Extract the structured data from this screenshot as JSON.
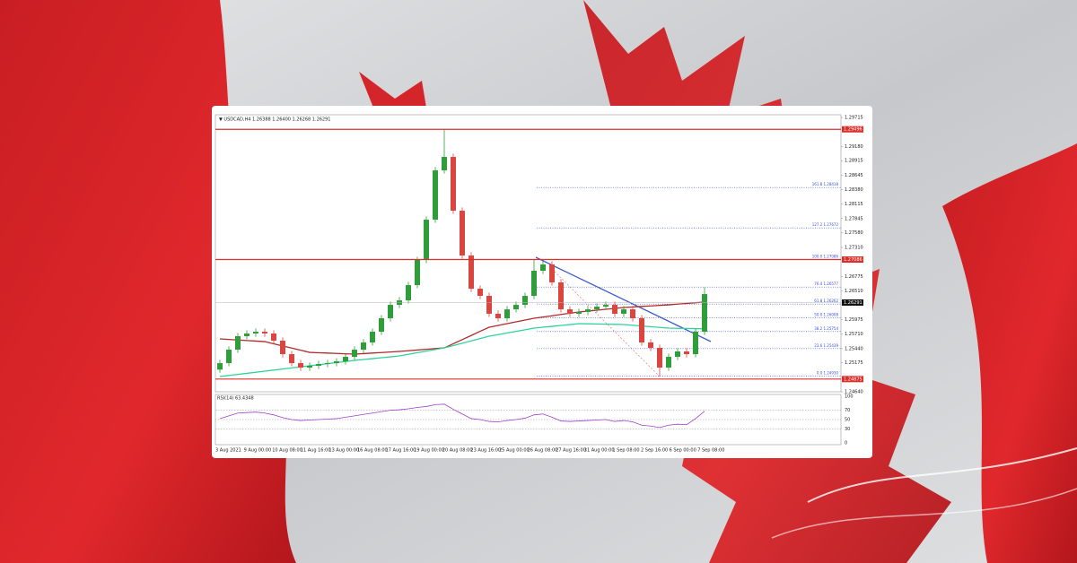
{
  "chart_data": {
    "type": "candlestick",
    "title": "▼ USDCAD,H4  1.26388 1.26400 1.26268 1.26291",
    "up_color": "#2f9e3a",
    "down_color": "#d9453f",
    "open": [
      1.2505,
      1.2517,
      1.25419,
      1.25668,
      1.25718,
      1.25751,
      1.25718,
      1.25585,
      1.25336,
      1.2517,
      1.25087,
      1.25121,
      1.25154,
      1.2517,
      1.25203,
      1.25286,
      1.25419,
      1.25552,
      1.25751,
      1.26,
      1.26248,
      1.26331,
      1.26613,
      1.27078,
      1.27824,
      1.28736,
      1.28985,
      1.2799,
      1.27161,
      1.26547,
      1.26414,
      1.26083,
      1.26,
      1.26165,
      1.26248,
      1.26414,
      1.26879,
      1.26995,
      1.26663,
      1.26165,
      1.26083,
      1.26116,
      1.26165,
      1.26215,
      1.26248,
      1.26083,
      1.26165,
      1.26,
      1.25552,
      1.25452,
      1.25087,
      1.25286,
      1.25386,
      1.25336,
      1.25751
    ],
    "high": [
      1.2523,
      1.25479,
      1.25728,
      1.25778,
      1.25811,
      1.25811,
      1.25778,
      1.25645,
      1.25396,
      1.2523,
      1.25181,
      1.25214,
      1.2523,
      1.25263,
      1.25346,
      1.25479,
      1.25612,
      1.25811,
      1.2606,
      1.26308,
      1.26391,
      1.26673,
      1.27138,
      1.27884,
      1.28796,
      1.29496,
      1.29045,
      1.2805,
      1.27221,
      1.26607,
      1.26474,
      1.26143,
      1.26225,
      1.26308,
      1.26474,
      1.27086,
      1.27055,
      1.27055,
      1.26723,
      1.26225,
      1.26176,
      1.26225,
      1.26275,
      1.26308,
      1.26308,
      1.26225,
      1.26225,
      1.2606,
      1.25612,
      1.25512,
      1.25346,
      1.25446,
      1.25446,
      1.25811,
      1.26574
    ],
    "low": [
      1.2499,
      1.2511,
      1.25359,
      1.25608,
      1.25658,
      1.25658,
      1.25525,
      1.25276,
      1.2511,
      1.25027,
      1.25027,
      1.25061,
      1.25094,
      1.2511,
      1.25143,
      1.25226,
      1.25359,
      1.25492,
      1.25691,
      1.2594,
      1.26188,
      1.26271,
      1.26553,
      1.27018,
      1.27764,
      1.28676,
      1.2793,
      1.27101,
      1.26487,
      1.26354,
      1.26023,
      1.2594,
      1.2594,
      1.26105,
      1.26188,
      1.26354,
      1.26819,
      1.26603,
      1.26105,
      1.26023,
      1.26023,
      1.26056,
      1.26105,
      1.26155,
      1.26023,
      1.26023,
      1.2594,
      1.25492,
      1.25392,
      1.2493,
      1.25027,
      1.25226,
      1.25276,
      1.25276,
      1.25691
    ],
    "close": [
      1.2517,
      1.25419,
      1.25668,
      1.25718,
      1.25751,
      1.25718,
      1.25585,
      1.25336,
      1.2517,
      1.25087,
      1.25121,
      1.25154,
      1.2517,
      1.25203,
      1.25286,
      1.25419,
      1.25552,
      1.25751,
      1.26,
      1.26248,
      1.26331,
      1.26613,
      1.27078,
      1.27824,
      1.28736,
      1.28985,
      1.2799,
      1.27161,
      1.26547,
      1.26414,
      1.26083,
      1.26,
      1.26165,
      1.26248,
      1.26414,
      1.26879,
      1.26995,
      1.26663,
      1.26165,
      1.26083,
      1.26116,
      1.26165,
      1.26215,
      1.26248,
      1.26083,
      1.26165,
      1.26,
      1.25552,
      1.25452,
      1.25087,
      1.25286,
      1.25386,
      1.25336,
      1.25751,
      1.26447
    ],
    "series": [
      {
        "color": "#b22a2a",
        "values": [
          1.25618,
          1.25608,
          1.25598,
          1.25588,
          1.25578,
          1.25568,
          1.25528,
          1.25488,
          1.25449,
          1.25409,
          1.25369,
          1.25362,
          1.25356,
          1.25349,
          1.25343,
          1.25336,
          1.25346,
          1.25356,
          1.25366,
          1.25376,
          1.25386,
          1.25399,
          1.25412,
          1.25426,
          1.25439,
          1.25452,
          1.25528,
          1.25605,
          1.25681,
          1.25758,
          1.25834,
          1.25867,
          1.259,
          1.25934,
          1.25967,
          1.26,
          1.26023,
          1.26046,
          1.2607,
          1.26093,
          1.26116,
          1.26133,
          1.26149,
          1.26166,
          1.26182,
          1.26199,
          1.26209,
          1.26219,
          1.26228,
          1.26238,
          1.26248,
          1.26261,
          1.26274,
          1.26287,
          1.263
        ]
      },
      {
        "color": "#2fd39a",
        "values": [
          1.24922,
          1.24942,
          1.24962,
          1.24981,
          1.25001,
          1.25021,
          1.25041,
          1.25061,
          1.25081,
          1.25101,
          1.25121,
          1.25141,
          1.25161,
          1.2518,
          1.252,
          1.2522,
          1.25237,
          1.25253,
          1.2527,
          1.25286,
          1.25303,
          1.25333,
          1.25363,
          1.25392,
          1.25422,
          1.25452,
          1.25495,
          1.25538,
          1.25582,
          1.25625,
          1.25668,
          1.25698,
          1.25728,
          1.25757,
          1.25787,
          1.25817,
          1.25834,
          1.2585,
          1.25867,
          1.25883,
          1.259,
          1.25897,
          1.25894,
          1.2589,
          1.25887,
          1.25884,
          1.25871,
          1.25857,
          1.25844,
          1.2583,
          1.25817,
          1.25814,
          1.25811,
          1.25808,
          1.25805
        ]
      }
    ],
    "ylim": [
      1.2464,
      1.29765
    ],
    "yticks": [
      {
        "value": 1.29715,
        "label": "1.29715"
      },
      {
        "value": 1.2918,
        "label": "1.29180"
      },
      {
        "value": 1.28915,
        "label": "1.28915"
      },
      {
        "value": 1.28645,
        "label": "1.28645"
      },
      {
        "value": 1.2838,
        "label": "1.28380"
      },
      {
        "value": 1.28115,
        "label": "1.28115"
      },
      {
        "value": 1.27845,
        "label": "1.27845"
      },
      {
        "value": 1.2758,
        "label": "1.27580"
      },
      {
        "value": 1.2731,
        "label": "1.27310"
      },
      {
        "value": 1.26775,
        "label": "1.26775"
      },
      {
        "value": 1.2651,
        "label": "1.26510"
      },
      {
        "value": 1.25975,
        "label": "1.25975"
      },
      {
        "value": 1.2571,
        "label": "1.25710"
      },
      {
        "value": 1.2544,
        "label": "1.25440"
      },
      {
        "value": 1.25175,
        "label": "1.25175"
      },
      {
        "value": 1.2464,
        "label": "1.24640"
      }
    ],
    "levels": [
      1.29496,
      1.27086,
      1.24875
    ],
    "level_color": "#d9302c",
    "last_price": 1.26291,
    "fib_levels": [
      {
        "value": 1.28418,
        "label": "161.8 1.28418"
      },
      {
        "value": 1.27672,
        "label": "127.2 1.27672"
      },
      {
        "value": 1.27086,
        "label": "100.0 1.27086"
      },
      {
        "value": 1.26577,
        "label": "76.4 1.26577"
      },
      {
        "value": 1.26262,
        "label": "61.8 1.26262"
      },
      {
        "value": 1.26008,
        "label": "50.0 1.26008"
      },
      {
        "value": 1.25754,
        "label": "38.2 1.25754"
      },
      {
        "value": 1.25439,
        "label": "23.6 1.25439"
      },
      {
        "value": 1.2493,
        "label": "0.0 1.24930"
      }
    ],
    "fib_color": "#3a4fd8",
    "time_labels": [
      "3 Aug 2021",
      "9 Aug 00:00",
      "10 Aug 08:00",
      "11 Aug 16:00",
      "13 Aug 00:00",
      "16 Aug 08:00",
      "17 Aug 16:00",
      "19 Aug 00:00",
      "20 Aug 08:00",
      "23 Aug 16:00",
      "25 Aug 00:00",
      "26 Aug 08:00",
      "27 Aug 16:00",
      "31 Aug 00:00",
      "1 Sep 08:00",
      "2 Sep 16:00",
      "6 Sep 00:00",
      "7 Sep 08:00"
    ],
    "rsi": {
      "label": "RSI(14) 63.4348",
      "color": "#a040c8",
      "values": [
        52,
        58,
        64,
        65,
        66,
        64,
        60,
        54,
        50,
        48,
        49,
        50,
        51,
        52,
        55,
        58,
        61,
        64,
        67,
        70,
        71,
        73,
        76,
        78,
        82,
        83,
        72,
        62,
        52,
        50,
        46,
        45,
        48,
        50,
        53,
        60,
        62,
        55,
        47,
        46,
        47,
        48,
        49,
        50,
        46,
        48,
        45,
        38,
        36,
        33,
        38,
        40,
        39,
        52,
        68
      ],
      "ylim": [
        0,
        100
      ],
      "yticks": [
        100,
        70,
        50,
        30,
        0
      ],
      "levels": [
        70,
        50,
        30
      ]
    }
  }
}
